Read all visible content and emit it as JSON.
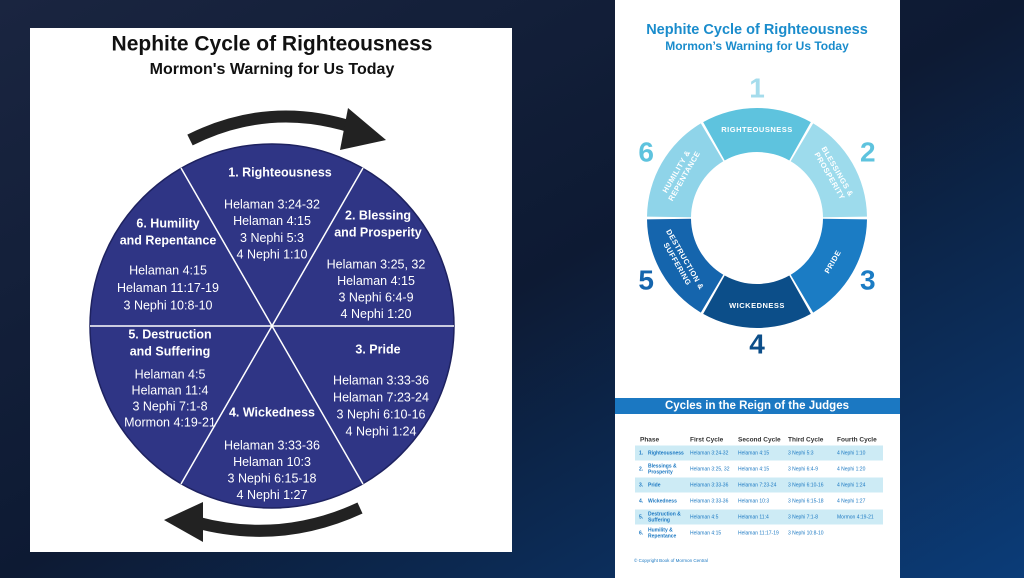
{
  "left": {
    "title": "Nephite Cycle of Righteousness",
    "subtitle": "Mormon's Warning for Us Today",
    "sectors": [
      {
        "title": [
          "1. Righteousness"
        ],
        "refs": [
          "Helaman 3:24-32",
          "Helaman 4:15",
          "3 Nephi 5:3",
          "4 Nephi 1:10"
        ]
      },
      {
        "title": [
          "2. Blessing",
          "and Prosperity"
        ],
        "refs": [
          "Helaman 3:25, 32",
          "Helaman 4:15",
          "3 Nephi 6:4-9",
          "4 Nephi 1:20"
        ]
      },
      {
        "title": [
          "3. Pride"
        ],
        "refs": [
          "Helaman 3:33-36",
          "Helaman 7:23-24",
          "3 Nephi 6:10-16",
          "4 Nephi 1:24"
        ]
      },
      {
        "title": [
          "4. Wickedness"
        ],
        "refs": [
          "Helaman 3:33-36",
          "Helaman 10:3",
          "3 Nephi 6:15-18",
          "4 Nephi 1:27"
        ]
      },
      {
        "title": [
          "5. Destruction",
          "and Suffering"
        ],
        "refs": [
          "Helaman 4:5",
          "Helaman 11:4",
          "3 Nephi 7:1-8",
          "Mormon 4:19-21"
        ]
      },
      {
        "title": [
          "6. Humility",
          "and Repentance"
        ],
        "refs": [
          "Helaman 4:15",
          "Helaman 11:17-19",
          "3 Nephi 10:8-10"
        ]
      }
    ]
  },
  "right": {
    "title": "Nephite Cycle of Righteousness",
    "subtitle": "Mormon’s Warning for Us Today",
    "segments": [
      {
        "number": "1",
        "label": [
          "RIGHTEOUSNESS"
        ]
      },
      {
        "number": "2",
        "label": [
          "BLESSINGS &",
          "PROSPERITY"
        ]
      },
      {
        "number": "3",
        "label": [
          "PRIDE"
        ]
      },
      {
        "number": "4",
        "label": [
          "WICKEDNESS"
        ]
      },
      {
        "number": "5",
        "label": [
          "DESTRUCTION &",
          "SUFFERING"
        ]
      },
      {
        "number": "6",
        "label": [
          "HUMILITY &",
          "REPENTANCE"
        ]
      }
    ],
    "table": {
      "title": "Cycles in the Reign of the Judges",
      "header": [
        "Phase",
        "First Cycle",
        "Second Cycle",
        "Third Cycle",
        "Fourth Cycle"
      ],
      "rows": [
        {
          "number": "1.",
          "phase": [
            "Righteousness"
          ],
          "cells": [
            "Helaman 3:24-32",
            "Helaman 4:15",
            "3 Nephi 5:3",
            "4 Nephi 1:10"
          ]
        },
        {
          "number": "2.",
          "phase": [
            "Blessings &",
            "Prosperity"
          ],
          "cells": [
            "Helaman 3:25, 32",
            "Helaman 4:15",
            "3 Nephi 6:4-9",
            "4 Nephi 1:20"
          ]
        },
        {
          "number": "3.",
          "phase": [
            "Pride"
          ],
          "cells": [
            "Helaman 3:33-36",
            "Helaman 7:23-24",
            "3 Nephi 6:10-16",
            "4 Nephi 1:24"
          ]
        },
        {
          "number": "4.",
          "phase": [
            "Wickedness"
          ],
          "cells": [
            "Helaman 3:33-36",
            "Helaman 10:3",
            "3 Nephi 6:15-18",
            "4 Nephi 1:27"
          ]
        },
        {
          "number": "5.",
          "phase": [
            "Destruction &",
            "Suffering"
          ],
          "cells": [
            "Helaman 4:5",
            "Helaman 11:4",
            "3 Nephi 7:1-8",
            "Mormon 4:19-21"
          ]
        },
        {
          "number": "6.",
          "phase": [
            "Humility &",
            "Repentance"
          ],
          "cells": [
            "Helaman 4:15",
            "Helaman 11:17-19",
            "3 Nephi 10:8-10"
          ]
        }
      ]
    },
    "footer": "© Copyright Book of Mormon Central"
  }
}
